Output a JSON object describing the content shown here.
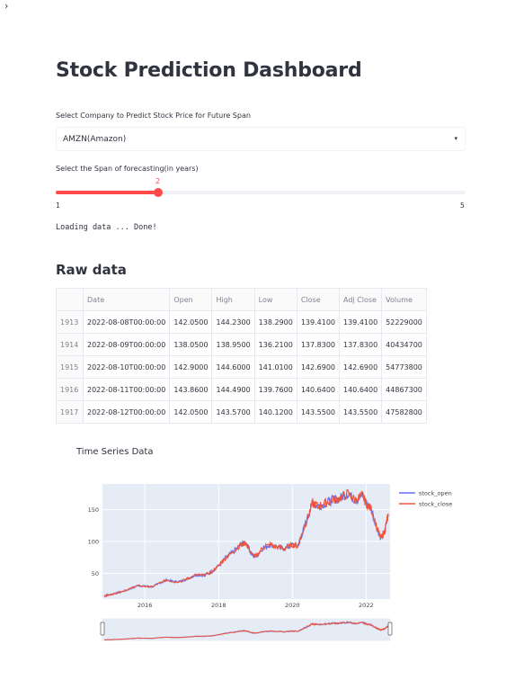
{
  "sidebar": {
    "toggle_icon": "›"
  },
  "page_title": "Stock Prediction Dashboard",
  "company_select": {
    "label": "Select Company to Predict Stock Price for Future Span",
    "value": "AMZN(Amazon)",
    "chevron": "▾"
  },
  "span_slider": {
    "label": "Select the Span of forecasting(in years)",
    "value": 2,
    "value_text": "2",
    "min": 1,
    "max": 5,
    "min_text": "1",
    "max_text": "5"
  },
  "status": {
    "loading_text": "Loading data ... Done!"
  },
  "raw_data": {
    "title": "Raw data",
    "columns": [
      "",
      "Date",
      "Open",
      "High",
      "Low",
      "Close",
      "Adj Close",
      "Volume"
    ],
    "rows": [
      [
        "1913",
        "2022-08-08T00:00:00",
        "142.0500",
        "144.2300",
        "138.2900",
        "139.4100",
        "139.4100",
        "52229000"
      ],
      [
        "1914",
        "2022-08-09T00:00:00",
        "138.0500",
        "138.9500",
        "136.2100",
        "137.8300",
        "137.8300",
        "40434700"
      ],
      [
        "1915",
        "2022-08-10T00:00:00",
        "142.9000",
        "144.6000",
        "141.0100",
        "142.6900",
        "142.6900",
        "54773800"
      ],
      [
        "1916",
        "2022-08-11T00:00:00",
        "143.8600",
        "144.4900",
        "139.7600",
        "140.6400",
        "140.6400",
        "44867300"
      ],
      [
        "1917",
        "2022-08-12T00:00:00",
        "142.0500",
        "143.5700",
        "140.1200",
        "143.5500",
        "143.5500",
        "47582800"
      ]
    ]
  },
  "chart_data": {
    "type": "line",
    "title": "Time Series Data",
    "xlabel": "",
    "ylabel": "",
    "x_ticks": [
      "2016",
      "2018",
      "2020",
      "2022"
    ],
    "y_ticks": [
      50,
      100,
      150
    ],
    "xlim": [
      2014.85,
      2022.65
    ],
    "ylim": [
      10,
      190
    ],
    "legend_position": "top-right",
    "grid": true,
    "series": [
      {
        "name": "stock_open",
        "color": "#636efa",
        "x": [
          2014.9,
          2015.0,
          2015.2,
          2015.4,
          2015.6,
          2015.8,
          2016.0,
          2016.2,
          2016.4,
          2016.6,
          2016.8,
          2017.0,
          2017.2,
          2017.4,
          2017.6,
          2017.8,
          2018.0,
          2018.2,
          2018.4,
          2018.6,
          2018.75,
          2018.9,
          2019.0,
          2019.2,
          2019.4,
          2019.6,
          2019.8,
          2020.0,
          2020.15,
          2020.25,
          2020.4,
          2020.55,
          2020.7,
          2020.9,
          2021.1,
          2021.3,
          2021.5,
          2021.7,
          2021.9,
          2022.0,
          2022.15,
          2022.3,
          2022.4,
          2022.5,
          2022.6
        ],
        "values": [
          15,
          16,
          19,
          22,
          26,
          31,
          30,
          29,
          35,
          40,
          37,
          38,
          43,
          48,
          47,
          52,
          62,
          75,
          84,
          95,
          98,
          80,
          76,
          90,
          95,
          91,
          89,
          95,
          93,
          110,
          135,
          160,
          155,
          160,
          165,
          168,
          175,
          165,
          172,
          160,
          150,
          120,
          105,
          115,
          142
        ]
      },
      {
        "name": "stock_close",
        "color": "#ef553b",
        "x": [
          2014.9,
          2015.0,
          2015.2,
          2015.4,
          2015.6,
          2015.8,
          2016.0,
          2016.2,
          2016.4,
          2016.6,
          2016.8,
          2017.0,
          2017.2,
          2017.4,
          2017.6,
          2017.8,
          2018.0,
          2018.2,
          2018.4,
          2018.6,
          2018.75,
          2018.9,
          2019.0,
          2019.2,
          2019.4,
          2019.6,
          2019.8,
          2020.0,
          2020.15,
          2020.25,
          2020.4,
          2020.55,
          2020.7,
          2020.9,
          2021.1,
          2021.3,
          2021.5,
          2021.7,
          2021.9,
          2022.0,
          2022.15,
          2022.3,
          2022.4,
          2022.5,
          2022.6
        ],
        "values": [
          15,
          16,
          19,
          22,
          26,
          31,
          30,
          29,
          35,
          40,
          37,
          38,
          43,
          48,
          47,
          52,
          62,
          75,
          84,
          95,
          98,
          80,
          76,
          90,
          95,
          91,
          89,
          95,
          93,
          110,
          135,
          160,
          155,
          160,
          165,
          168,
          175,
          165,
          172,
          160,
          150,
          120,
          105,
          115,
          143.5
        ]
      }
    ]
  }
}
